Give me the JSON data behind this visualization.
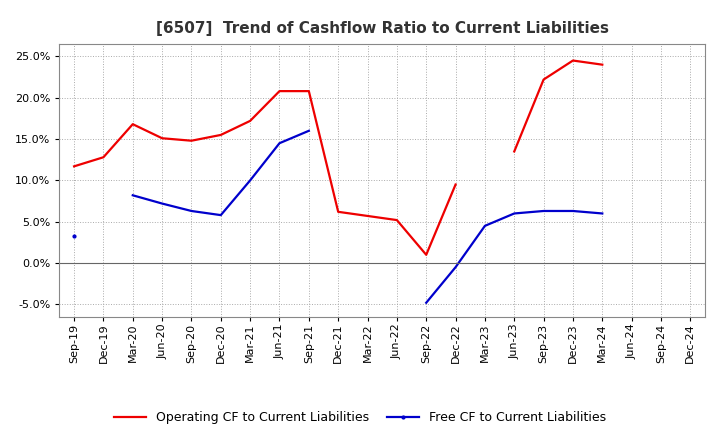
{
  "title": "[6507]  Trend of Cashflow Ratio to Current Liabilities",
  "x_labels": [
    "Sep-19",
    "Dec-19",
    "Mar-20",
    "Jun-20",
    "Sep-20",
    "Dec-20",
    "Mar-21",
    "Jun-21",
    "Sep-21",
    "Dec-21",
    "Mar-22",
    "Jun-22",
    "Sep-22",
    "Dec-22",
    "Mar-23",
    "Jun-23",
    "Sep-23",
    "Dec-23",
    "Mar-24",
    "Jun-24",
    "Sep-24",
    "Dec-24"
  ],
  "operating_cf": [
    0.117,
    0.128,
    0.168,
    0.151,
    0.148,
    0.155,
    0.172,
    0.208,
    0.208,
    0.062,
    0.057,
    0.052,
    0.01,
    0.095,
    null,
    0.135,
    0.222,
    0.245,
    0.24,
    null,
    null,
    null
  ],
  "free_cf": [
    0.033,
    null,
    0.082,
    0.072,
    0.063,
    0.058,
    0.1,
    0.145,
    0.16,
    null,
    null,
    null,
    -0.048,
    -0.005,
    0.045,
    0.06,
    0.063,
    0.063,
    0.06,
    null,
    null,
    null
  ],
  "operating_color": "#EE0000",
  "free_color": "#0000CC",
  "ylim": [
    -0.065,
    0.265
  ],
  "yticks": [
    -0.05,
    0.0,
    0.05,
    0.1,
    0.15,
    0.2,
    0.25
  ],
  "background_color": "#FFFFFF",
  "plot_bg_color": "#FFFFFF",
  "grid_color": "#AAAAAA",
  "title_fontsize": 11,
  "tick_fontsize": 8,
  "legend_fontsize": 9
}
